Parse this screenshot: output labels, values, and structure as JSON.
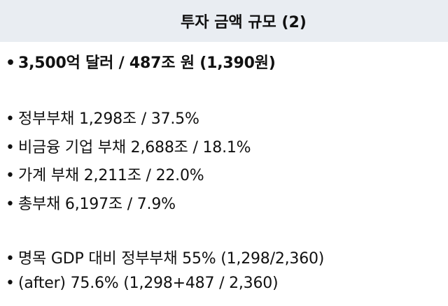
{
  "header": {
    "title": "투자 금액 규모 (2)"
  },
  "bullet_glyph": "•",
  "summary": {
    "amount": "3,500억 달러 / 487조 원 (1,390원)"
  },
  "debt_breakdown": [
    "정부부채 1,298조 / 37.5%",
    "비금융 기업 부채 2,688조 / 18.1%",
    "가계 부채 2,211조 / 22.0%",
    "총부채 6,197조 / 7.9%"
  ],
  "gdp_ratio": [
    "명목 GDP 대비 정부부채 55% (1,298/2,360)",
    "(after) 75.6% (1,298+487 / 2,360)"
  ]
}
